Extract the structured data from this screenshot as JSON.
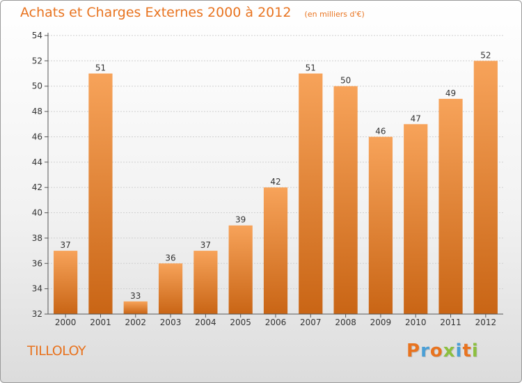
{
  "chart_data": {
    "type": "bar",
    "title": "Achats et Charges Externes 2000 à 2012",
    "subtitle": "(en milliers d'€)",
    "categories": [
      "2000",
      "2001",
      "2002",
      "2003",
      "2004",
      "2005",
      "2006",
      "2007",
      "2008",
      "2009",
      "2010",
      "2011",
      "2012"
    ],
    "values": [
      37,
      51,
      33,
      36,
      37,
      39,
      42,
      51,
      50,
      46,
      47,
      49,
      52
    ],
    "ylim": [
      32,
      54
    ],
    "yticks": [
      32,
      34,
      36,
      38,
      40,
      42,
      44,
      46,
      48,
      50,
      52,
      54
    ],
    "grid": true,
    "bar_color_top": "#f7a35a",
    "bar_color_bottom": "#c96515"
  },
  "footer": {
    "commune": "TILLOLOY",
    "logo_letters": [
      "P",
      "r",
      "o",
      "x",
      "i",
      "t",
      "i"
    ],
    "logo_colors": [
      "#e8731f",
      "#4a9fd6",
      "#e8731f",
      "#8cbf3f",
      "#4a9fd6",
      "#e8731f",
      "#8cbf3f"
    ]
  },
  "colors": {
    "title": "#e8731f"
  }
}
